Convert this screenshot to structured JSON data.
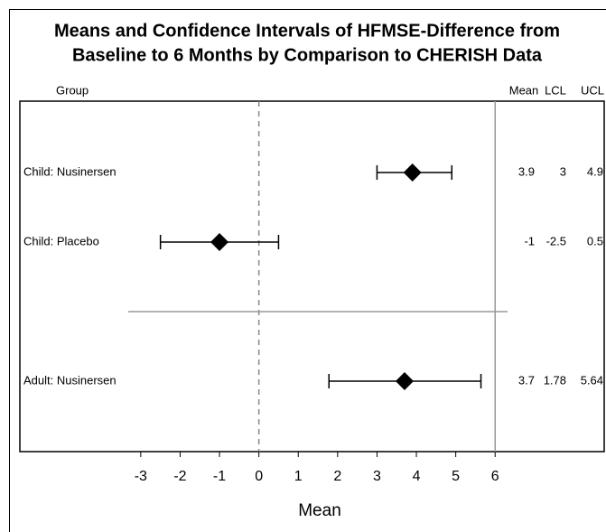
{
  "chart_data": {
    "type": "forest",
    "title": [
      "Means and  Confidence Intervals of HFMSE-Difference from",
      "Baseline to 6 Months by Comparison to CHERISH Data"
    ],
    "group_header": "Group",
    "column_headers": [
      "Mean",
      "LCL",
      "UCL"
    ],
    "x_label": "Mean",
    "categories": [
      "Child: Nusinersen",
      "Child: Placebo",
      null,
      "Adult: Nusinersen"
    ],
    "series": [
      {
        "name": "Mean",
        "color": "#000000",
        "values": [
          3.9,
          -1,
          null,
          3.7
        ]
      },
      {
        "name": "LCL",
        "color": "#000000",
        "values": [
          3,
          -2.5,
          null,
          1.78
        ]
      },
      {
        "name": "UCL",
        "color": "#000000",
        "values": [
          4.9,
          0.5,
          null,
          5.64
        ]
      }
    ],
    "xlim": [
      -6.07,
      8.77
    ],
    "xticks": [
      -3,
      -2,
      -1,
      0,
      1,
      2,
      3,
      4,
      5,
      6
    ],
    "reference_lines": [
      {
        "value": 0,
        "style": "dashed"
      },
      {
        "value": 6,
        "style": "solid"
      }
    ]
  }
}
